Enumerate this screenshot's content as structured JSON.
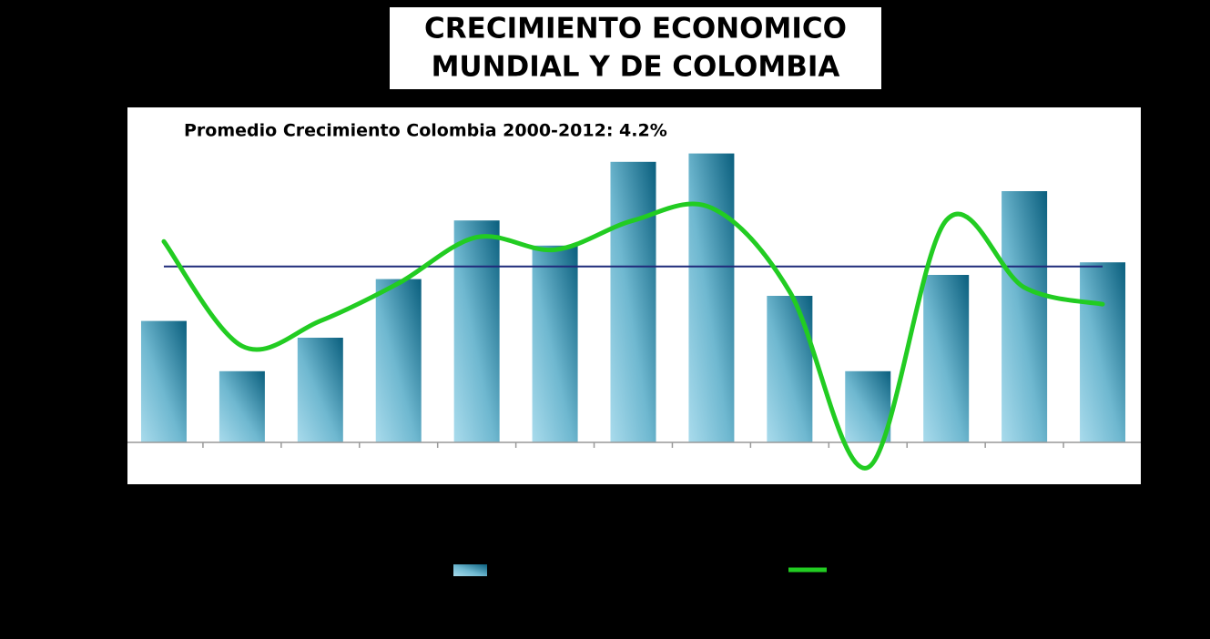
{
  "chart_data": {
    "type": "bar-line",
    "title": [
      "CRECIMIENTO ECONOMICO",
      "MUNDIAL Y DE COLOMBIA"
    ],
    "annotation": "Promedio Crecimiento Colombia 2000-2012:  4.2%",
    "average_line": {
      "value": 4.2,
      "color": "#1f2a7a"
    },
    "categories": [
      null,
      null,
      null,
      null,
      null,
      null,
      null,
      null,
      null,
      null,
      null,
      null,
      null
    ],
    "series": [
      {
        "type": "bar",
        "color": "#0e6b8a",
        "values": [
          2.9,
          1.7,
          2.5,
          3.9,
          5.3,
          4.7,
          6.7,
          6.9,
          3.5,
          1.7,
          4.0,
          6.0,
          4.3
        ]
      },
      {
        "type": "line",
        "color": "#22cc22",
        "values": [
          4.8,
          2.3,
          2.9,
          3.8,
          4.9,
          4.6,
          5.3,
          5.6,
          3.6,
          -0.6,
          5.3,
          3.7,
          3.3
        ]
      }
    ],
    "ylim": [
      -1,
      8
    ]
  }
}
